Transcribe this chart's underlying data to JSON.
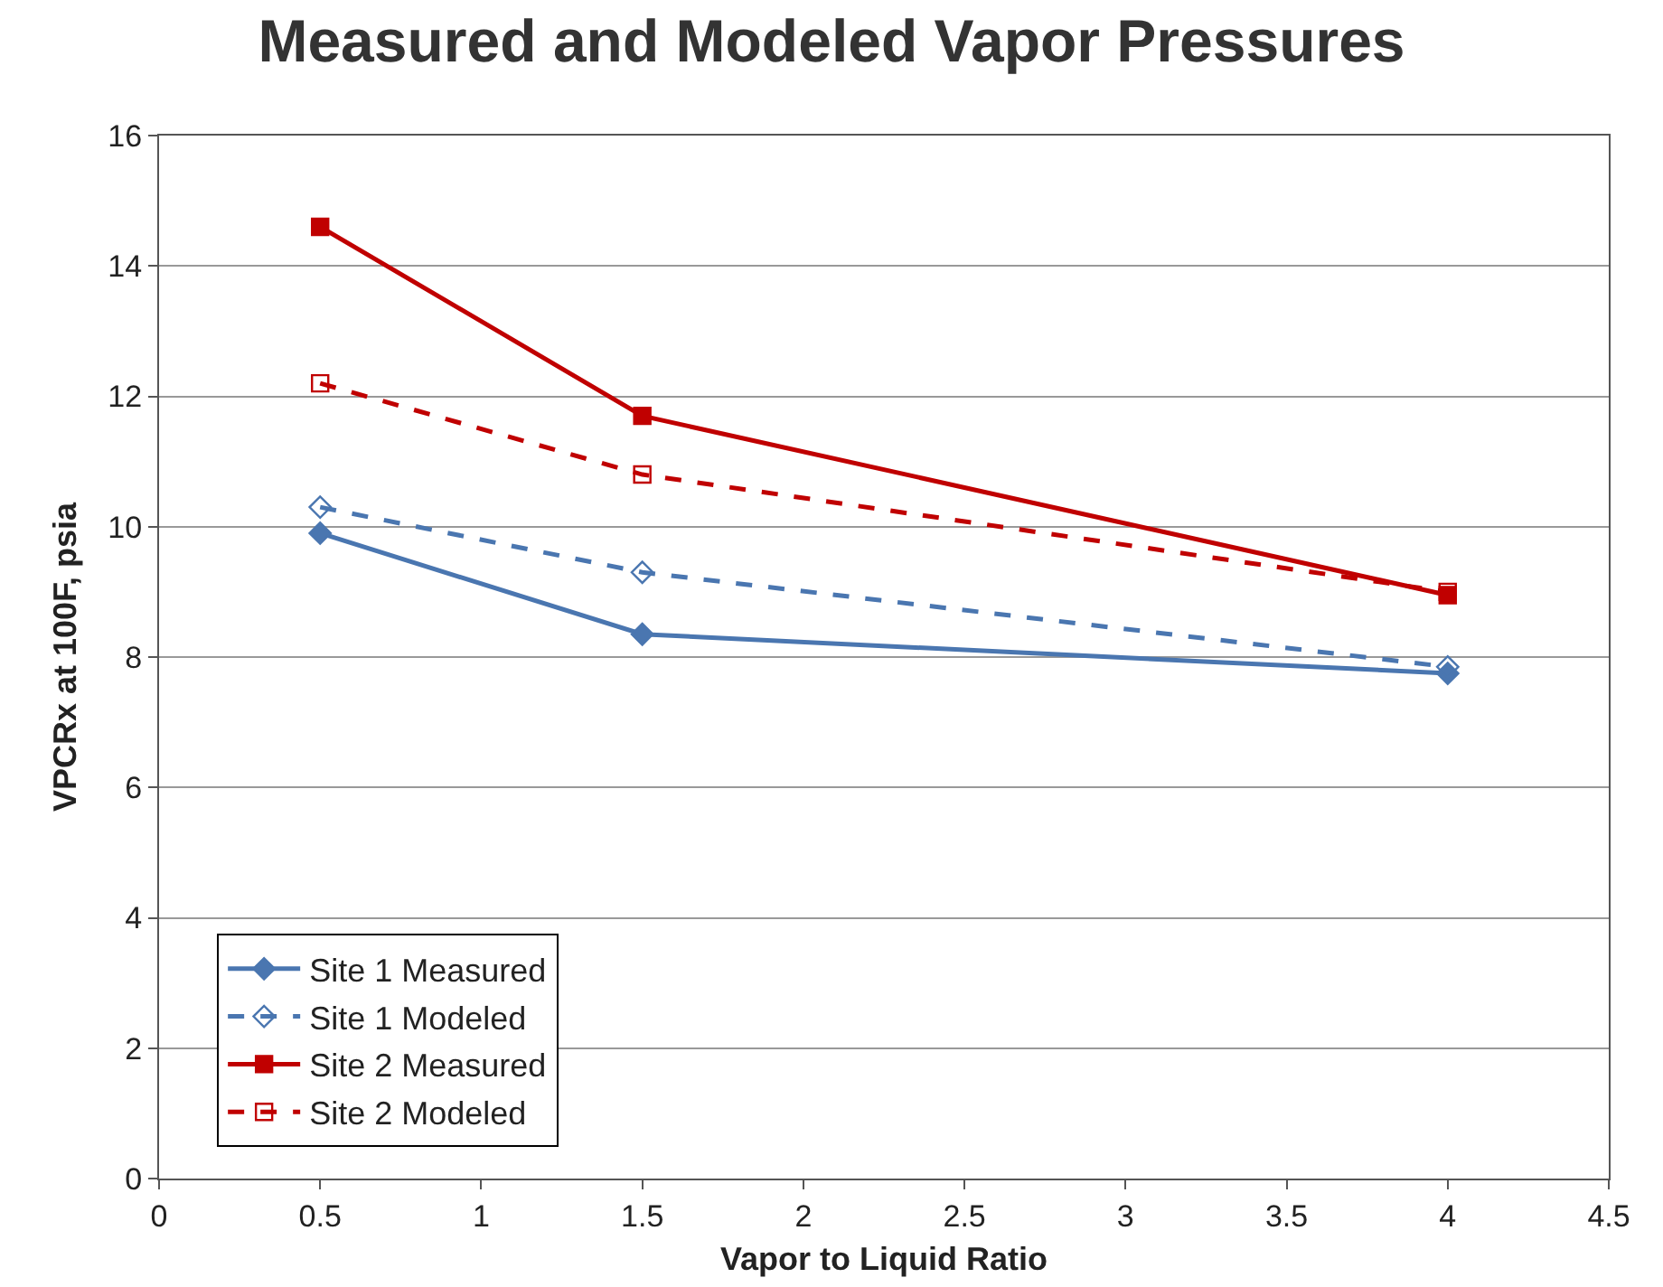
{
  "chart_data": {
    "type": "line",
    "title": "Measured and Modeled Vapor Pressures",
    "xlabel": "Vapor to Liquid Ratio",
    "ylabel": "VPCRx at 100F, psia",
    "x": [
      0.5,
      1.5,
      4
    ],
    "series": [
      {
        "name": "Site 1 Measured",
        "color": "#4a76b0",
        "values": [
          9.9,
          8.35,
          7.75
        ],
        "marker": "diamond",
        "line_style": "solid"
      },
      {
        "name": "Site 1 Modeled",
        "color": "#4a76b0",
        "values": [
          10.3,
          9.3,
          7.85
        ],
        "marker": "diamond-open",
        "line_style": "dashed"
      },
      {
        "name": "Site 2 Measured",
        "color": "#c00000",
        "values": [
          14.6,
          11.7,
          8.95
        ],
        "marker": "square",
        "line_style": "solid"
      },
      {
        "name": "Site 2 Modeled",
        "color": "#c00000",
        "values": [
          12.2,
          10.8,
          9.0
        ],
        "marker": "square-open",
        "line_style": "dashed"
      }
    ],
    "xlim": [
      0,
      4.5
    ],
    "xticks": [
      0,
      0.5,
      1,
      1.5,
      2,
      2.5,
      3,
      3.5,
      4,
      4.5
    ],
    "ylim": [
      0,
      16
    ],
    "yticks": [
      0,
      2,
      4,
      6,
      8,
      10,
      12,
      14,
      16
    ],
    "grid": "y",
    "legend": "bottom left"
  }
}
